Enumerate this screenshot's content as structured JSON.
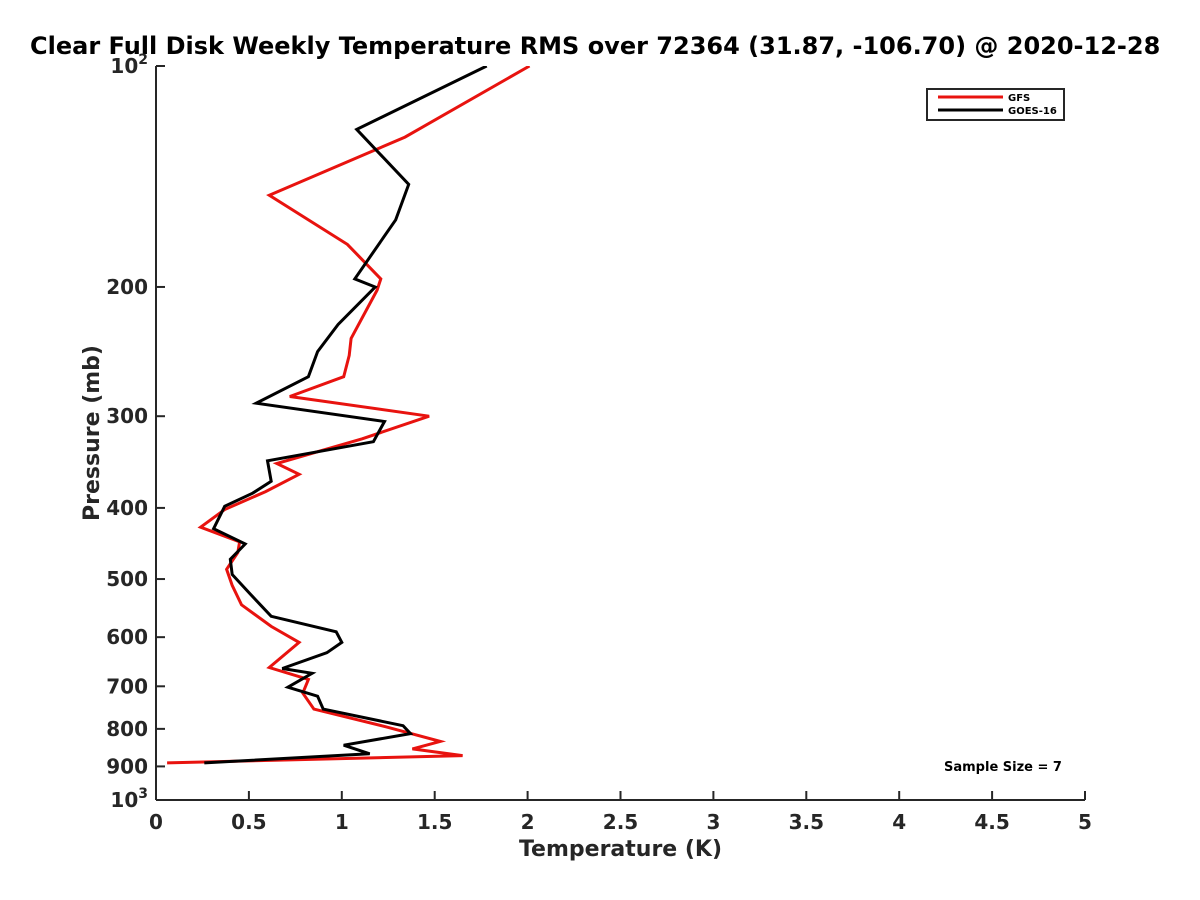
{
  "chart_data": {
    "type": "line",
    "title": "Clear Full Disk Weekly Temperature RMS over 72364 (31.87, -106.70) @ 2020-12-28",
    "xlabel": "Temperature (K)",
    "ylabel": "Pressure (mb)",
    "xlim": [
      0,
      5
    ],
    "ylim": [
      100,
      1000
    ],
    "y_scale": "log",
    "y_reversed": true,
    "grid": false,
    "legend_position": "top-right",
    "x_ticks": [
      "0",
      "0.5",
      "1",
      "1.5",
      "2",
      "2.5",
      "3",
      "3.5",
      "4",
      "4.5",
      "5"
    ],
    "y_ticks": [
      {
        "value": 100,
        "base": "10",
        "exp": "2"
      },
      {
        "value": 200,
        "label": "200"
      },
      {
        "value": 300,
        "label": "300"
      },
      {
        "value": 400,
        "label": "400"
      },
      {
        "value": 500,
        "label": "500"
      },
      {
        "value": 600,
        "label": "600"
      },
      {
        "value": 700,
        "label": "700"
      },
      {
        "value": 800,
        "label": "800"
      },
      {
        "value": 900,
        "label": "900"
      },
      {
        "value": 1000,
        "base": "10",
        "exp": "3"
      }
    ],
    "annotation": "Sample Size = 7",
    "series": [
      {
        "name": "GFS",
        "color": "#e8130f",
        "points": [
          [
            2.01,
            100
          ],
          [
            1.34,
            125
          ],
          [
            0.61,
            150
          ],
          [
            1.03,
            175
          ],
          [
            1.21,
            195
          ],
          [
            1.19,
            202
          ],
          [
            1.05,
            235
          ],
          [
            1.04,
            248
          ],
          [
            1.01,
            265
          ],
          [
            0.72,
            282
          ],
          [
            1.47,
            300
          ],
          [
            1.11,
            322
          ],
          [
            0.65,
            348
          ],
          [
            0.77,
            360
          ],
          [
            0.59,
            380
          ],
          [
            0.37,
            402
          ],
          [
            0.24,
            425
          ],
          [
            0.45,
            445
          ],
          [
            0.44,
            460
          ],
          [
            0.38,
            485
          ],
          [
            0.41,
            510
          ],
          [
            0.46,
            542
          ],
          [
            0.62,
            580
          ],
          [
            0.77,
            610
          ],
          [
            0.61,
            660
          ],
          [
            0.82,
            685
          ],
          [
            0.79,
            715
          ],
          [
            0.85,
            752
          ],
          [
            1.24,
            795
          ],
          [
            1.53,
            832
          ],
          [
            1.38,
            852
          ],
          [
            1.65,
            870
          ],
          [
            0.06,
            890
          ]
        ]
      },
      {
        "name": "GOES-16",
        "color": "#000000",
        "points": [
          [
            1.78,
            100
          ],
          [
            1.08,
            122
          ],
          [
            1.36,
            145
          ],
          [
            1.29,
            162
          ],
          [
            1.07,
            195
          ],
          [
            1.18,
            200
          ],
          [
            0.98,
            225
          ],
          [
            0.87,
            245
          ],
          [
            0.82,
            265
          ],
          [
            0.54,
            288
          ],
          [
            1.23,
            305
          ],
          [
            1.17,
            325
          ],
          [
            0.6,
            345
          ],
          [
            0.62,
            368
          ],
          [
            0.52,
            382
          ],
          [
            0.37,
            398
          ],
          [
            0.31,
            427
          ],
          [
            0.48,
            448
          ],
          [
            0.4,
            470
          ],
          [
            0.41,
            493
          ],
          [
            0.51,
            525
          ],
          [
            0.62,
            562
          ],
          [
            0.97,
            590
          ],
          [
            1.0,
            610
          ],
          [
            0.92,
            630
          ],
          [
            0.68,
            662
          ],
          [
            0.84,
            672
          ],
          [
            0.71,
            702
          ],
          [
            0.87,
            722
          ],
          [
            0.9,
            752
          ],
          [
            1.33,
            792
          ],
          [
            1.37,
            812
          ],
          [
            1.01,
            842
          ],
          [
            1.15,
            865
          ],
          [
            0.26,
            890
          ]
        ]
      }
    ]
  }
}
